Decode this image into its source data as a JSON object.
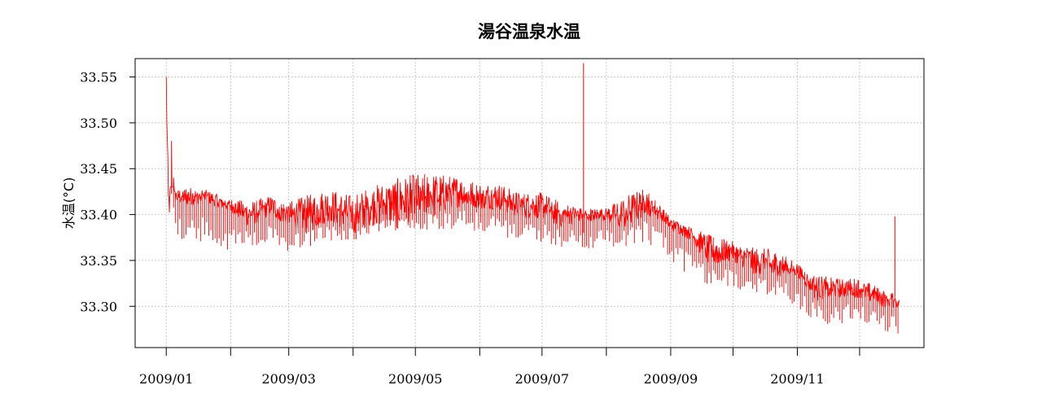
{
  "chart_data": {
    "type": "line",
    "title": "湯谷温泉水温",
    "xlabel": "",
    "ylabel": "水温(°C)",
    "x_tick_labels": [
      "2009/01",
      "2009/03",
      "2009/05",
      "2009/07",
      "2009/09",
      "2009/11"
    ],
    "x_ticks": [
      "2009-01-01",
      "2009-02-01",
      "2009-03-01",
      "2009-04-01",
      "2009-05-01",
      "2009-06-01",
      "2009-07-01",
      "2009-08-01",
      "2009-09-01",
      "2009-10-01",
      "2009-11-01",
      "2009-12-01"
    ],
    "xlim": [
      "2008-12-17",
      "2010-01-01"
    ],
    "y_ticks": [
      33.3,
      33.35,
      33.4,
      33.45,
      33.5,
      33.55
    ],
    "ylim": [
      33.255,
      33.57
    ],
    "grid": true,
    "series": [
      {
        "color": "#ff0000",
        "x": [
          "2009-01-01",
          "2009-01-02",
          "2009-01-05",
          "2009-01-10",
          "2009-01-20",
          "2009-02-01",
          "2009-02-10",
          "2009-02-20",
          "2009-03-01",
          "2009-03-10",
          "2009-03-20",
          "2009-04-01",
          "2009-04-10",
          "2009-04-20",
          "2009-05-01",
          "2009-05-10",
          "2009-05-20",
          "2009-06-01",
          "2009-06-10",
          "2009-06-20",
          "2009-07-01",
          "2009-07-10",
          "2009-07-20",
          "2009-08-01",
          "2009-08-10",
          "2009-08-20",
          "2009-09-01",
          "2009-09-10",
          "2009-09-20",
          "2009-10-01",
          "2009-10-10",
          "2009-10-20",
          "2009-11-01",
          "2009-11-10",
          "2009-11-20",
          "2009-12-01",
          "2009-12-10",
          "2009-12-20"
        ],
        "y": [
          33.55,
          33.54,
          33.42,
          33.42,
          33.42,
          33.41,
          33.4,
          33.41,
          33.4,
          33.4,
          33.41,
          33.4,
          33.41,
          33.41,
          33.42,
          33.42,
          33.425,
          33.42,
          33.42,
          33.41,
          33.41,
          33.4,
          33.4,
          33.4,
          33.4,
          33.415,
          33.39,
          33.38,
          33.36,
          33.36,
          33.35,
          33.345,
          33.34,
          33.32,
          33.32,
          33.32,
          33.31,
          33.305
        ],
        "low": [
          33.52,
          33.4,
          33.38,
          33.37,
          33.37,
          33.36,
          33.365,
          33.37,
          33.36,
          33.36,
          33.37,
          33.37,
          33.38,
          33.38,
          33.385,
          33.38,
          33.385,
          33.38,
          33.375,
          33.37,
          33.37,
          33.365,
          33.36,
          33.365,
          33.365,
          33.37,
          33.35,
          33.33,
          33.32,
          33.32,
          33.31,
          33.31,
          33.3,
          33.28,
          33.28,
          33.285,
          33.275,
          33.268
        ],
        "high": [
          33.563,
          33.43,
          33.43,
          33.435,
          33.43,
          33.42,
          33.42,
          33.425,
          33.42,
          33.43,
          33.435,
          33.43,
          33.44,
          33.45,
          33.455,
          33.455,
          33.45,
          33.44,
          33.44,
          33.43,
          33.43,
          33.42,
          33.41,
          33.41,
          33.43,
          33.435,
          33.4,
          33.39,
          33.385,
          33.375,
          33.37,
          33.37,
          33.35,
          33.34,
          33.335,
          33.335,
          33.325,
          33.315
        ]
      }
    ],
    "spikes": [
      {
        "x": "2009-07-21",
        "y_low": 33.38,
        "y_high": 33.565
      },
      {
        "x": "2009-12-18",
        "y_low": 33.31,
        "y_high": 33.398
      }
    ]
  }
}
